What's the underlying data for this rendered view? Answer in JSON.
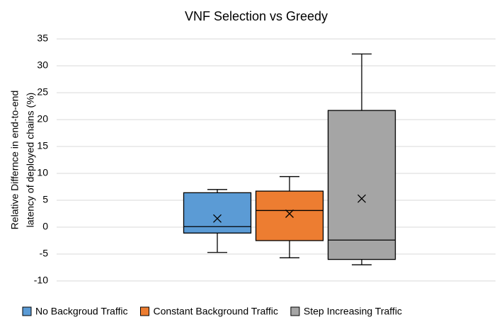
{
  "chart_data": {
    "type": "box",
    "title": "VNF Selection vs Greedy",
    "y_label": [
      "Relative Differnce in end-to-end",
      "latency of deployed chains (%)"
    ],
    "ylim": [
      -10,
      35
    ],
    "yticks": [
      -10,
      -5,
      0,
      5,
      10,
      15,
      20,
      25,
      30,
      35
    ],
    "grid": true,
    "legend": "bottom",
    "series": [
      {
        "name": "No Backgroud Traffic",
        "color": "#5b9bd5",
        "min": -4.7,
        "q1": -1.1,
        "median": 0.1,
        "q3": 6.4,
        "max": 7.0,
        "mean": 1.6
      },
      {
        "name": "Constant Background Traffic",
        "color": "#ed7d31",
        "min": -5.7,
        "q1": -2.5,
        "median": 3.1,
        "q3": 6.7,
        "max": 9.4,
        "mean": 2.5
      },
      {
        "name": "Step Increasing Traffic",
        "color": "#a5a5a5",
        "min": -7.0,
        "q1": -6.0,
        "median": -2.4,
        "q3": 21.7,
        "max": 32.2,
        "mean": 5.3
      }
    ]
  }
}
